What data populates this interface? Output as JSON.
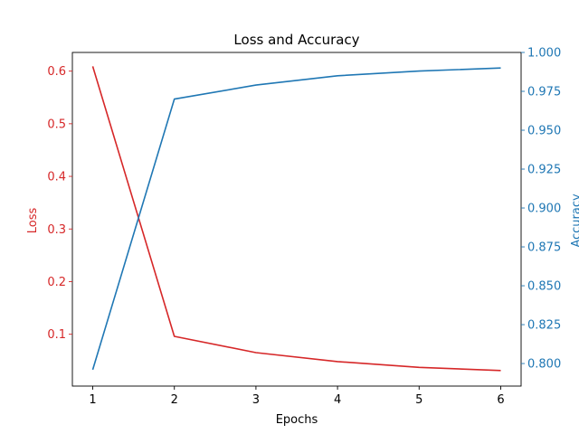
{
  "chart_data": {
    "type": "line",
    "title": "Loss and Accuracy",
    "xlabel": "Epochs",
    "x": [
      1,
      2,
      3,
      4,
      5,
      6
    ],
    "xticks": [
      "1",
      "2",
      "3",
      "4",
      "5",
      "6"
    ],
    "xlim": [
      0.75,
      6.25
    ],
    "left_axis": {
      "label": "Loss",
      "color": "#d62728",
      "ylim": [
        0.0015,
        0.6355
      ],
      "ticks": [
        0.1,
        0.2,
        0.3,
        0.4,
        0.5,
        0.6
      ],
      "tick_labels": [
        "0.1",
        "0.2",
        "0.3",
        "0.4",
        "0.5",
        "0.6"
      ]
    },
    "right_axis": {
      "label": "Accuracy",
      "color": "#1f77b4",
      "ylim": [
        0.7855,
        1.0
      ],
      "ticks": [
        0.8,
        0.825,
        0.85,
        0.875,
        0.9,
        0.925,
        0.95,
        0.975,
        1.0
      ],
      "tick_labels": [
        "0.800",
        "0.825",
        "0.850",
        "0.875",
        "0.900",
        "0.925",
        "0.950",
        "0.975",
        "1.000"
      ]
    },
    "series": [
      {
        "name": "Loss",
        "axis": "left",
        "color": "#d62728",
        "values": [
          0.609,
          0.096,
          0.065,
          0.048,
          0.037,
          0.031
        ]
      },
      {
        "name": "Accuracy",
        "axis": "right",
        "color": "#1f77b4",
        "values": [
          0.796,
          0.97,
          0.979,
          0.985,
          0.988,
          0.99
        ]
      }
    ],
    "grid": false
  }
}
